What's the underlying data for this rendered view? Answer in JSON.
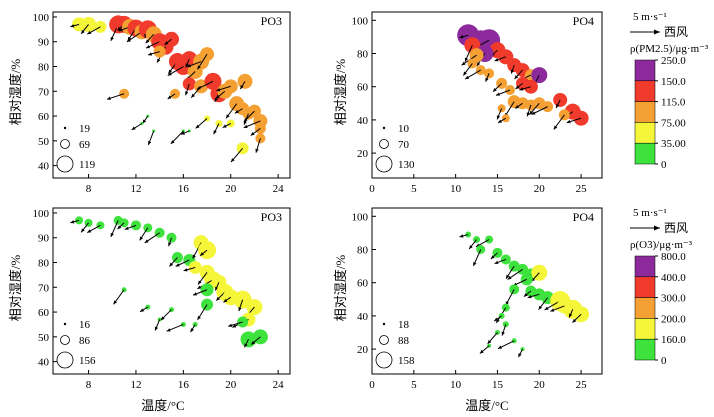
{
  "figure": {
    "xlabel": "温度/°C",
    "ylabel": "相对湿度/%",
    "wind_key": {
      "speed": "5 m·s⁻¹",
      "direction": "西风"
    },
    "colors": {
      "green": "#3de23d",
      "yellow": "#f5f53a",
      "orange": "#f5a033",
      "red": "#f03a2c",
      "purple": "#8c2a9c"
    }
  },
  "legends": [
    {
      "title": "ρ(PM2.5)/μg·m⁻³",
      "ticks": [
        "250.0",
        "150.0",
        "115.0",
        "75.00",
        "35.00",
        "0"
      ]
    },
    {
      "title": "ρ(O3)/μg·m⁻³",
      "ticks": [
        "800.0",
        "400.0",
        "300.0",
        "200.0",
        "160.0",
        "0"
      ]
    }
  ],
  "chart_data": [
    {
      "type": "scatter",
      "title": "PO3",
      "pollutant": "PM2.5",
      "xlim": [
        5,
        25
      ],
      "xticks": [
        8,
        12,
        16,
        20,
        24
      ],
      "ylim": [
        35,
        102
      ],
      "yticks": [
        40,
        50,
        60,
        70,
        80,
        90,
        100
      ],
      "size_legend": [
        "19",
        "69",
        "119"
      ],
      "points": [
        [
          7.2,
          97,
          "yellow",
          14
        ],
        [
          8,
          97,
          "yellow",
          15
        ],
        [
          9,
          96,
          "yellow",
          12
        ],
        [
          10.5,
          97,
          "red",
          18
        ],
        [
          11,
          97,
          "red",
          17
        ],
        [
          11.5,
          96,
          "orange",
          16
        ],
        [
          12,
          95.5,
          "red",
          17
        ],
        [
          12.5,
          94,
          "orange",
          15
        ],
        [
          13,
          95,
          "red",
          18
        ],
        [
          13.5,
          93,
          "orange",
          16
        ],
        [
          14,
          90,
          "red",
          17
        ],
        [
          14.5,
          88,
          "red",
          16
        ],
        [
          15,
          91,
          "red",
          15
        ],
        [
          14,
          86,
          "orange",
          12
        ],
        [
          15.5,
          82,
          "red",
          17
        ],
        [
          16,
          80,
          "red",
          17
        ],
        [
          16.5,
          83,
          "red",
          16
        ],
        [
          17,
          78,
          "orange",
          15
        ],
        [
          17.5,
          82,
          "orange",
          16
        ],
        [
          18,
          85,
          "orange",
          14
        ],
        [
          15.3,
          69,
          "orange",
          10
        ],
        [
          16.5,
          73,
          "red",
          13
        ],
        [
          17.5,
          72,
          "orange",
          14
        ],
        [
          18.5,
          74,
          "red",
          17
        ],
        [
          19,
          69,
          "red",
          17
        ],
        [
          19.5,
          70,
          "orange",
          15
        ],
        [
          20,
          72,
          "orange",
          14
        ],
        [
          20.5,
          65,
          "orange",
          15
        ],
        [
          21,
          63,
          "orange",
          13
        ],
        [
          21.5,
          61,
          "orange",
          12
        ],
        [
          22,
          62,
          "orange",
          13
        ],
        [
          22.5,
          58,
          "orange",
          14
        ],
        [
          21.2,
          74,
          "orange",
          15
        ],
        [
          22.5,
          55,
          "orange",
          11
        ],
        [
          22.5,
          51,
          "orange",
          10
        ],
        [
          21,
          47,
          "yellow",
          12
        ],
        [
          20,
          57,
          "yellow",
          8
        ],
        [
          19,
          57,
          "yellow",
          7
        ],
        [
          18,
          59,
          "yellow",
          6
        ],
        [
          11,
          69,
          "orange",
          10
        ],
        [
          13,
          60,
          "green",
          3
        ],
        [
          12.5,
          57,
          "green",
          3
        ],
        [
          13.5,
          54,
          "green",
          3
        ],
        [
          16,
          54,
          "green",
          3
        ],
        [
          16.5,
          54,
          "green",
          3
        ]
      ]
    },
    {
      "type": "scatter",
      "title": "PO4",
      "pollutant": "PM2.5",
      "xlim": [
        0,
        27.5
      ],
      "xticks": [
        0,
        5,
        10,
        15,
        20,
        25
      ],
      "ylim": [
        5,
        105
      ],
      "yticks": [
        20,
        40,
        60,
        80,
        100
      ],
      "size_legend": [
        "10",
        "70",
        "130"
      ],
      "points": [
        [
          11.5,
          91,
          "purple",
          22
        ],
        [
          13,
          88,
          "purple",
          20
        ],
        [
          14,
          88,
          "purple",
          22
        ],
        [
          12,
          85,
          "red",
          16
        ],
        [
          15,
          82,
          "red",
          16
        ],
        [
          16,
          78,
          "red",
          15
        ],
        [
          13.5,
          80,
          "purple",
          17
        ],
        [
          12.5,
          79,
          "orange",
          14
        ],
        [
          17,
          73,
          "red",
          14
        ],
        [
          18,
          70,
          "red",
          14
        ],
        [
          19,
          67,
          "orange",
          12
        ],
        [
          20,
          67,
          "purple",
          16
        ],
        [
          18,
          62,
          "red",
          13
        ],
        [
          19,
          60,
          "red",
          14
        ],
        [
          12,
          74,
          "orange",
          10
        ],
        [
          13,
          70,
          "orange",
          10
        ],
        [
          14,
          68,
          "orange",
          10
        ],
        [
          15.5,
          62,
          "orange",
          11
        ],
        [
          16.5,
          58,
          "orange",
          10
        ],
        [
          17,
          51,
          "orange",
          13
        ],
        [
          18,
          50,
          "orange",
          12
        ],
        [
          19,
          49,
          "orange",
          11
        ],
        [
          20,
          50,
          "orange",
          12
        ],
        [
          21,
          48,
          "orange",
          11
        ],
        [
          22.5,
          52,
          "red",
          14
        ],
        [
          24,
          45,
          "red",
          16
        ],
        [
          25,
          41,
          "red",
          15
        ],
        [
          23,
          43,
          "orange",
          11
        ],
        [
          16,
          41,
          "orange",
          8
        ],
        [
          15.5,
          47,
          "orange",
          8
        ]
      ]
    },
    {
      "type": "scatter",
      "title": "PO3",
      "pollutant": "O3",
      "xlim": [
        5,
        25
      ],
      "xticks": [
        8,
        12,
        16,
        20,
        24
      ],
      "ylim": [
        35,
        102
      ],
      "yticks": [
        40,
        50,
        60,
        70,
        80,
        90,
        100
      ],
      "size_legend": [
        "16",
        "86",
        "156"
      ],
      "points": [
        [
          7.2,
          97,
          "green",
          8
        ],
        [
          8,
          96,
          "green",
          8
        ],
        [
          9,
          95,
          "green",
          8
        ],
        [
          10.5,
          97,
          "green",
          9
        ],
        [
          11,
          96,
          "green",
          9
        ],
        [
          12,
          95,
          "green",
          10
        ],
        [
          13,
          94,
          "green",
          9
        ],
        [
          14,
          92,
          "green",
          10
        ],
        [
          15,
          90,
          "green",
          10
        ],
        [
          15.5,
          82,
          "green",
          11
        ],
        [
          16.5,
          81,
          "green",
          12
        ],
        [
          17.5,
          88,
          "yellow",
          15
        ],
        [
          18,
          85,
          "yellow",
          18
        ],
        [
          17,
          78,
          "yellow",
          13
        ],
        [
          18,
          76,
          "yellow",
          15
        ],
        [
          18.5,
          73,
          "yellow",
          17
        ],
        [
          19,
          72,
          "yellow",
          15
        ],
        [
          19.5,
          68,
          "yellow",
          17
        ],
        [
          18,
          69,
          "green",
          13
        ],
        [
          18,
          63,
          "green",
          12
        ],
        [
          20,
          66,
          "yellow",
          16
        ],
        [
          21,
          65,
          "yellow",
          18
        ],
        [
          22,
          62,
          "yellow",
          16
        ],
        [
          21.5,
          57,
          "yellow",
          14
        ],
        [
          21.5,
          49,
          "green",
          16
        ],
        [
          22.5,
          50,
          "green",
          15
        ],
        [
          21,
          56,
          "green",
          11
        ],
        [
          11,
          69,
          "green",
          5
        ],
        [
          13,
          62,
          "green",
          5
        ],
        [
          14,
          57,
          "green",
          4
        ],
        [
          15,
          61,
          "green",
          5
        ],
        [
          16,
          55,
          "green",
          5
        ],
        [
          17,
          55,
          "green",
          5
        ]
      ]
    },
    {
      "type": "scatter",
      "title": "PO4",
      "pollutant": "O3",
      "xlim": [
        0,
        27.5
      ],
      "xticks": [
        0,
        5,
        10,
        15,
        20,
        25
      ],
      "ylim": [
        5,
        105
      ],
      "yticks": [
        20,
        40,
        60,
        80,
        100
      ],
      "size_legend": [
        "18",
        "88",
        "158"
      ],
      "points": [
        [
          11.5,
          89,
          "green",
          6
        ],
        [
          12.5,
          86,
          "green",
          7
        ],
        [
          14,
          86,
          "green",
          8
        ],
        [
          13,
          80,
          "green",
          9
        ],
        [
          15,
          78,
          "green",
          10
        ],
        [
          16,
          74,
          "green",
          10
        ],
        [
          17,
          70,
          "green",
          11
        ],
        [
          18,
          68,
          "green",
          11
        ],
        [
          19,
          65,
          "green",
          12
        ],
        [
          20,
          66,
          "yellow",
          16
        ],
        [
          18.5,
          62,
          "green",
          12
        ],
        [
          17,
          56,
          "green",
          10
        ],
        [
          19,
          55,
          "green",
          11
        ],
        [
          20,
          53,
          "green",
          12
        ],
        [
          21,
          51,
          "green",
          13
        ],
        [
          22.5,
          49,
          "yellow",
          20
        ],
        [
          24,
          44,
          "yellow",
          19
        ],
        [
          25,
          41,
          "yellow",
          16
        ],
        [
          23,
          46,
          "yellow",
          15
        ],
        [
          16,
          45,
          "green",
          8
        ],
        [
          15.5,
          40,
          "green",
          6
        ],
        [
          16,
          35,
          "green",
          6
        ],
        [
          15,
          30,
          "green",
          5
        ],
        [
          17,
          25,
          "green",
          5
        ],
        [
          18,
          20,
          "green",
          4
        ],
        [
          14,
          22,
          "green",
          4
        ]
      ]
    }
  ]
}
